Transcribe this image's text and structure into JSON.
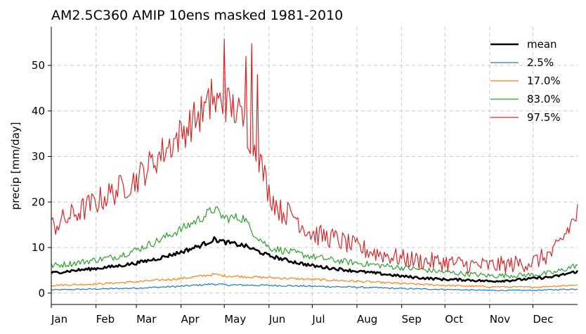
{
  "chart_data": {
    "type": "line",
    "title": "AM2.5C360 AMIP 10ens masked 1981-2010",
    "xlabel": "",
    "ylabel": "precip [mm/day]",
    "xlim": [
      1,
      366
    ],
    "ylim": [
      -2.5,
      58.5
    ],
    "grid": true,
    "legend_position": "top-right",
    "x_ticks": [
      {
        "label": "Jan",
        "day": 1
      },
      {
        "label": "Feb",
        "day": 32
      },
      {
        "label": "Mar",
        "day": 60
      },
      {
        "label": "Apr",
        "day": 91
      },
      {
        "label": "May",
        "day": 121
      },
      {
        "label": "Jun",
        "day": 152
      },
      {
        "label": "Jul",
        "day": 182
      },
      {
        "label": "Aug",
        "day": 213
      },
      {
        "label": "Sep",
        "day": 244
      },
      {
        "label": "Oct",
        "day": 274
      },
      {
        "label": "Nov",
        "day": 305
      },
      {
        "label": "Dec",
        "day": 335
      }
    ],
    "y_ticks": [
      0,
      10,
      20,
      30,
      40,
      50
    ],
    "series": [
      {
        "name": "mean",
        "color": "#000000",
        "width": 2.6,
        "days": [
          1,
          15,
          32,
          46,
          60,
          75,
          91,
          105,
          114,
          121,
          135,
          152,
          167,
          182,
          197,
          213,
          228,
          244,
          259,
          274,
          289,
          305,
          320,
          335,
          350,
          366
        ],
        "values": [
          4.4,
          4.9,
          5.4,
          5.9,
          6.6,
          7.6,
          9.0,
          10.5,
          11.8,
          11.2,
          10.4,
          8.2,
          7.0,
          6.0,
          5.4,
          4.8,
          4.3,
          3.7,
          3.3,
          3.0,
          2.9,
          2.6,
          2.8,
          3.2,
          3.6,
          4.8
        ],
        "noise": 0.35
      },
      {
        "name": "2.5%",
        "color": "#1f77b4",
        "width": 1.2,
        "days": [
          1,
          32,
          60,
          91,
          114,
          121,
          152,
          182,
          213,
          244,
          274,
          305,
          335,
          366
        ],
        "values": [
          0.7,
          0.9,
          1.1,
          1.5,
          2.0,
          1.8,
          1.7,
          1.5,
          1.3,
          1.0,
          0.8,
          0.6,
          0.6,
          0.9
        ],
        "noise": 0.15
      },
      {
        "name": "17.0%",
        "color": "#ff7f0e",
        "width": 1.2,
        "days": [
          1,
          32,
          60,
          91,
          114,
          121,
          152,
          182,
          213,
          244,
          274,
          305,
          335,
          366
        ],
        "values": [
          1.7,
          2.0,
          2.5,
          3.2,
          4.1,
          3.8,
          3.4,
          3.0,
          2.6,
          2.1,
          1.7,
          1.4,
          1.3,
          1.8
        ],
        "noise": 0.2
      },
      {
        "name": "83.0%",
        "color": "#2ca02c",
        "width": 1.2,
        "days": [
          1,
          15,
          32,
          46,
          60,
          75,
          91,
          105,
          114,
          121,
          135,
          139,
          152,
          167,
          182,
          197,
          213,
          244,
          274,
          305,
          335,
          350,
          366
        ],
        "values": [
          6.0,
          6.5,
          7.3,
          8.0,
          9.5,
          11.5,
          14.0,
          16.5,
          18.5,
          16.5,
          16.5,
          14.0,
          10.0,
          9.0,
          8.0,
          7.2,
          6.6,
          5.6,
          4.6,
          3.8,
          4.0,
          4.5,
          6.2
        ],
        "noise": 0.8
      },
      {
        "name": "97.5%",
        "color": "#d62728",
        "width": 1.2,
        "days": [
          1,
          15,
          32,
          46,
          60,
          75,
          91,
          100,
          110,
          121,
          130,
          138,
          145,
          152,
          160,
          170,
          175,
          182,
          197,
          213,
          228,
          244,
          259,
          274,
          289,
          305,
          320,
          335,
          350,
          366
        ],
        "values": [
          14.5,
          17.0,
          20.0,
          22.5,
          25.0,
          30.0,
          35.0,
          38.0,
          41.0,
          42.0,
          40.0,
          35.0,
          30.0,
          22.0,
          18.0,
          17.0,
          15.0,
          13.0,
          12.0,
          10.0,
          8.7,
          7.6,
          7.0,
          6.8,
          6.2,
          6.0,
          6.3,
          6.8,
          9.0,
          17.5
        ],
        "noise": 3.0
      }
    ],
    "spikes": [
      {
        "series": "97.5%",
        "day": 121,
        "value": 55.8
      },
      {
        "series": "97.5%",
        "day": 140,
        "value": 54.8
      },
      {
        "series": "97.5%",
        "day": 136,
        "value": 52.0
      },
      {
        "series": "97.5%",
        "day": 144,
        "value": 48.0
      },
      {
        "series": "97.5%",
        "day": 112,
        "value": 47.0
      }
    ]
  }
}
